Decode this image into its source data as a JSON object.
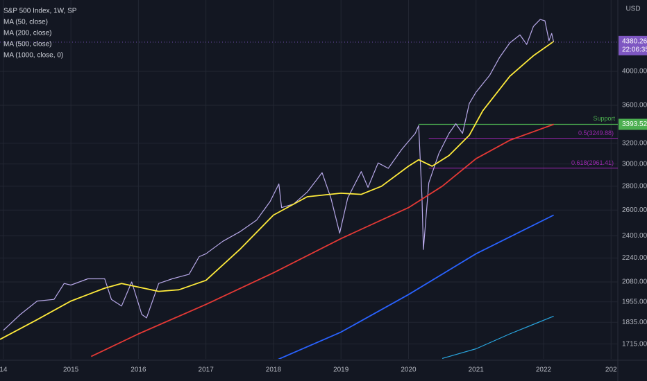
{
  "chart_data": {
    "type": "line",
    "log_scale": true,
    "grid": true,
    "legend": "top-left",
    "currency": "USD",
    "xlim": [
      2013.95,
      2023.1
    ],
    "xticks": [
      {
        "value": 2014,
        "label": "14"
      },
      2015,
      2016,
      2017,
      2018,
      2019,
      2020,
      2021,
      2022,
      {
        "value": 2023,
        "label": "202"
      }
    ],
    "ylim": [
      1638,
      4993
    ],
    "yticks": [
      {
        "value": 1715,
        "label": "1715.00"
      },
      {
        "value": 1835,
        "label": "1835.00"
      },
      {
        "value": 1955,
        "label": "1955.00"
      },
      {
        "value": 2080,
        "label": "2080.00"
      },
      {
        "value": 2240,
        "label": "2240.00"
      },
      {
        "value": 2400,
        "label": "2400.00"
      },
      {
        "value": 2600,
        "label": "2600.00"
      },
      {
        "value": 2800,
        "label": "2800.00"
      },
      {
        "value": 3000,
        "label": "3000.00"
      },
      {
        "value": 3200,
        "label": "3200.00"
      },
      {
        "value": 3600,
        "label": "3600.00"
      },
      {
        "value": 4000,
        "label": "4000.00"
      }
    ],
    "series": [
      {
        "name": "S&P 500 Index, 1W, SP",
        "color": "#b7a8e8",
        "width": 1.2,
        "x": [
          2014.0,
          2014.25,
          2014.5,
          2014.75,
          2014.9,
          2015.0,
          2015.25,
          2015.5,
          2015.6,
          2015.75,
          2015.9,
          2016.05,
          2016.12,
          2016.3,
          2016.5,
          2016.75,
          2016.9,
          2017.0,
          2017.25,
          2017.5,
          2017.75,
          2017.95,
          2018.08,
          2018.12,
          2018.3,
          2018.5,
          2018.72,
          2018.85,
          2018.98,
          2019.1,
          2019.3,
          2019.4,
          2019.55,
          2019.7,
          2019.9,
          2020.1,
          2020.15,
          2020.2,
          2020.22,
          2020.3,
          2020.45,
          2020.6,
          2020.7,
          2020.8,
          2020.9,
          2021.0,
          2021.2,
          2021.35,
          2021.5,
          2021.65,
          2021.75,
          2021.85,
          2021.95,
          2022.02,
          2022.08,
          2022.12,
          2022.15
        ],
        "values": [
          1790,
          1880,
          1960,
          1970,
          2070,
          2060,
          2100,
          2100,
          1970,
          1930,
          2080,
          1880,
          1860,
          2070,
          2100,
          2130,
          2250,
          2270,
          2360,
          2430,
          2520,
          2670,
          2820,
          2620,
          2650,
          2750,
          2920,
          2700,
          2420,
          2700,
          2930,
          2790,
          3010,
          2960,
          3140,
          3300,
          3380,
          2700,
          2300,
          2830,
          3100,
          3300,
          3400,
          3300,
          3620,
          3750,
          3950,
          4180,
          4370,
          4480,
          4350,
          4600,
          4700,
          4680,
          4400,
          4500,
          4380.26
        ]
      },
      {
        "name": "MA (50, close)",
        "color": "#ffeb3b",
        "width": 1.8,
        "x": [
          2013.95,
          2014.5,
          2015.0,
          2015.5,
          2015.75,
          2016.3,
          2016.6,
          2017.0,
          2017.5,
          2018.0,
          2018.5,
          2019.0,
          2019.3,
          2019.6,
          2020.0,
          2020.15,
          2020.35,
          2020.6,
          2020.9,
          2021.1,
          2021.5,
          2021.85,
          2022.15
        ],
        "values": [
          1740,
          1850,
          1960,
          2040,
          2070,
          2020,
          2030,
          2090,
          2300,
          2560,
          2710,
          2740,
          2730,
          2800,
          2980,
          3040,
          2980,
          3080,
          3280,
          3540,
          3940,
          4200,
          4390
        ]
      },
      {
        "name": "MA (200, close)",
        "color": "#e53935",
        "width": 1.8,
        "x": [
          2015.3,
          2016.0,
          2017.0,
          2018.0,
          2019.0,
          2020.0,
          2020.5,
          2021.0,
          2021.5,
          2022.15
        ],
        "values": [
          1650,
          1770,
          1940,
          2140,
          2380,
          2620,
          2800,
          3050,
          3230,
          3393.52
        ]
      },
      {
        "name": "MA (500, close)",
        "color": "#2962ff",
        "width": 1.8,
        "x": [
          2018.0,
          2019.0,
          2020.0,
          2021.0,
          2022.15
        ],
        "values": [
          1625,
          1780,
          2000,
          2270,
          2560
        ]
      },
      {
        "name": "MA (1000, close, 0)",
        "color": "#29a6e0",
        "width": 1.2,
        "x": [
          2020.5,
          2021.0,
          2021.5,
          2022.15
        ],
        "values": [
          1640,
          1690,
          1770,
          1870
        ]
      }
    ],
    "last_price": {
      "value": 4380.26,
      "countdown": "22:06:35",
      "color": "#7e57c2"
    },
    "support": {
      "label": "Support",
      "value": 3393.52,
      "from": 2020.15,
      "color": "#4caf50"
    },
    "fib_levels": [
      {
        "label": "0.5(3249.88)",
        "value": 3249.88,
        "from": 2020.3
      },
      {
        "label": "0.618(2961.41)",
        "value": 2961.41,
        "from": 2020.3
      }
    ],
    "fib_color": "#9c27b0"
  }
}
